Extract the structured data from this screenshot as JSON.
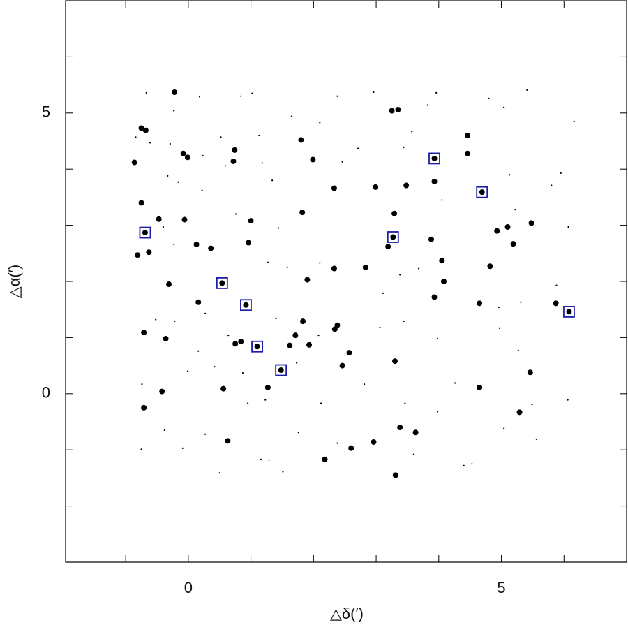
{
  "chart_data": {
    "type": "scatter",
    "x_label": "△δ(′)",
    "y_label": "△α(′)",
    "xlim": [
      -1.96,
      7
    ],
    "ylim": [
      -3,
      7
    ],
    "xticks": [
      0,
      5
    ],
    "yticks": [
      0,
      5
    ],
    "minor_xticks": [
      -1,
      1,
      2,
      3,
      4,
      6
    ],
    "minor_yticks": [
      -2,
      -1,
      1,
      2,
      3,
      4,
      6
    ],
    "series": [
      {
        "color": "#000000",
        "marker": "dot",
        "size": 1.1,
        "x": [
          -0.67,
          -0.23,
          0.18,
          -0.84,
          -0.61,
          -0.29,
          -0.33,
          -0.16,
          0.23,
          0.22,
          0.52,
          0.59,
          0.84,
          1.02,
          1.13,
          1.18,
          1.34,
          1.65,
          2.1,
          2.38,
          2.46,
          2.71,
          2.96,
          3.44,
          3.57,
          3.82,
          3.96,
          4.05,
          4.8,
          5.04,
          5.13,
          5.22,
          5.8,
          5.95,
          6.16,
          6.07,
          5.41,
          -0.4,
          -0.23,
          0.76,
          1.44,
          1.27,
          1.58,
          2.1,
          3.11,
          3.38,
          3.68,
          4.96,
          5.31,
          5.88,
          -0.52,
          -0.22,
          0.27,
          0.64,
          1.4,
          2.08,
          3.06,
          3.44,
          3.98,
          4.97,
          5.27,
          0.16,
          0.42,
          -0.01,
          0.87,
          0.95,
          1.23,
          1.73,
          2.12,
          2.81,
          3.46,
          4.26,
          5.49,
          -0.74,
          -0.38,
          -0.09,
          -0.75,
          0.27,
          0.5,
          1.16,
          1.29,
          1.51,
          1.76,
          2.38,
          3.6,
          4.4,
          4.53,
          6.06,
          5.56,
          5.04,
          3.98
        ],
        "values": [
          5.36,
          5.04,
          5.29,
          4.57,
          4.47,
          4.45,
          3.88,
          3.77,
          4.24,
          3.62,
          4.57,
          4.06,
          5.3,
          5.35,
          4.6,
          4.11,
          3.8,
          4.94,
          4.83,
          5.3,
          4.13,
          4.37,
          5.37,
          4.39,
          4.67,
          5.14,
          5.36,
          3.45,
          5.26,
          5.1,
          3.9,
          3.28,
          3.71,
          3.93,
          4.85,
          2.97,
          5.41,
          2.97,
          2.66,
          3.2,
          2.95,
          2.34,
          2.25,
          2.33,
          1.79,
          2.12,
          2.23,
          1.54,
          1.63,
          1.93,
          1.32,
          1.29,
          1.43,
          1.04,
          1.34,
          1.04,
          1.18,
          1.29,
          0.98,
          1.17,
          0.77,
          0.76,
          0.48,
          0.4,
          0.37,
          -0.17,
          -0.11,
          0.55,
          -0.17,
          0.17,
          -0.17,
          0.19,
          -0.19,
          0.17,
          -0.65,
          -0.97,
          -0.99,
          -0.72,
          -1.41,
          -1.17,
          -1.18,
          -1.39,
          -0.69,
          -0.88,
          -1.08,
          -1.28,
          -1.25,
          -0.11,
          -0.81,
          -0.62,
          -0.32
        ]
      },
      {
        "color": "#000000",
        "marker": "dot",
        "size": 4,
        "x": [
          -0.22,
          -0.86,
          -0.75,
          -0.68,
          -0.08,
          -0.01,
          0.74,
          0.72,
          1.8,
          1.99,
          3.25,
          3.35,
          4.46,
          4.46,
          3.93,
          3.48,
          2.99,
          2.33,
          1.82,
          1.0,
          0.96,
          0.36,
          0.13,
          -0.06,
          -0.47,
          -0.75,
          -0.63,
          -0.81,
          -0.31,
          0.16,
          1.9,
          2.33,
          2.83,
          3.19,
          3.29,
          3.88,
          4.05,
          4.08,
          4.82,
          4.93,
          5.1,
          5.19,
          5.48,
          5.87,
          3.93,
          4.65,
          1.83,
          2.38,
          2.34,
          1.71,
          1.62,
          1.93,
          0.84,
          0.75,
          2.57,
          2.46,
          3.3,
          1.27,
          0.56,
          -0.42,
          -0.71,
          -0.71,
          -0.36,
          0.63,
          2.18,
          2.6,
          2.96,
          3.38,
          3.63,
          3.31,
          5.29,
          5.46,
          4.65
        ],
        "values": [
          5.37,
          4.12,
          4.73,
          4.69,
          4.28,
          4.21,
          4.34,
          4.14,
          4.52,
          4.17,
          5.04,
          5.06,
          4.6,
          4.28,
          3.78,
          3.71,
          3.68,
          3.66,
          3.23,
          3.08,
          2.69,
          2.59,
          2.66,
          3.1,
          3.11,
          3.4,
          2.52,
          2.47,
          1.95,
          1.63,
          2.03,
          2.23,
          2.25,
          2.62,
          3.21,
          2.75,
          2.37,
          2.0,
          2.27,
          2.9,
          2.97,
          2.67,
          3.04,
          1.61,
          1.72,
          1.61,
          1.29,
          1.22,
          1.15,
          1.04,
          0.86,
          0.87,
          0.93,
          0.89,
          0.73,
          0.5,
          0.58,
          0.11,
          0.09,
          0.04,
          -0.25,
          1.09,
          0.98,
          -0.84,
          -1.17,
          -0.97,
          -0.86,
          -0.6,
          -0.69,
          -1.45,
          -0.33,
          0.38,
          0.11
        ]
      },
      {
        "color": "#000000",
        "marker": "boxed-dot",
        "size": 4,
        "box_color": "#1c1caa",
        "x": [
          -0.69,
          0.54,
          0.92,
          1.1,
          1.48,
          3.27,
          3.93,
          4.69,
          6.08
        ],
        "values": [
          2.87,
          1.97,
          1.58,
          0.84,
          0.42,
          2.79,
          4.19,
          3.59,
          1.46
        ]
      }
    ]
  }
}
